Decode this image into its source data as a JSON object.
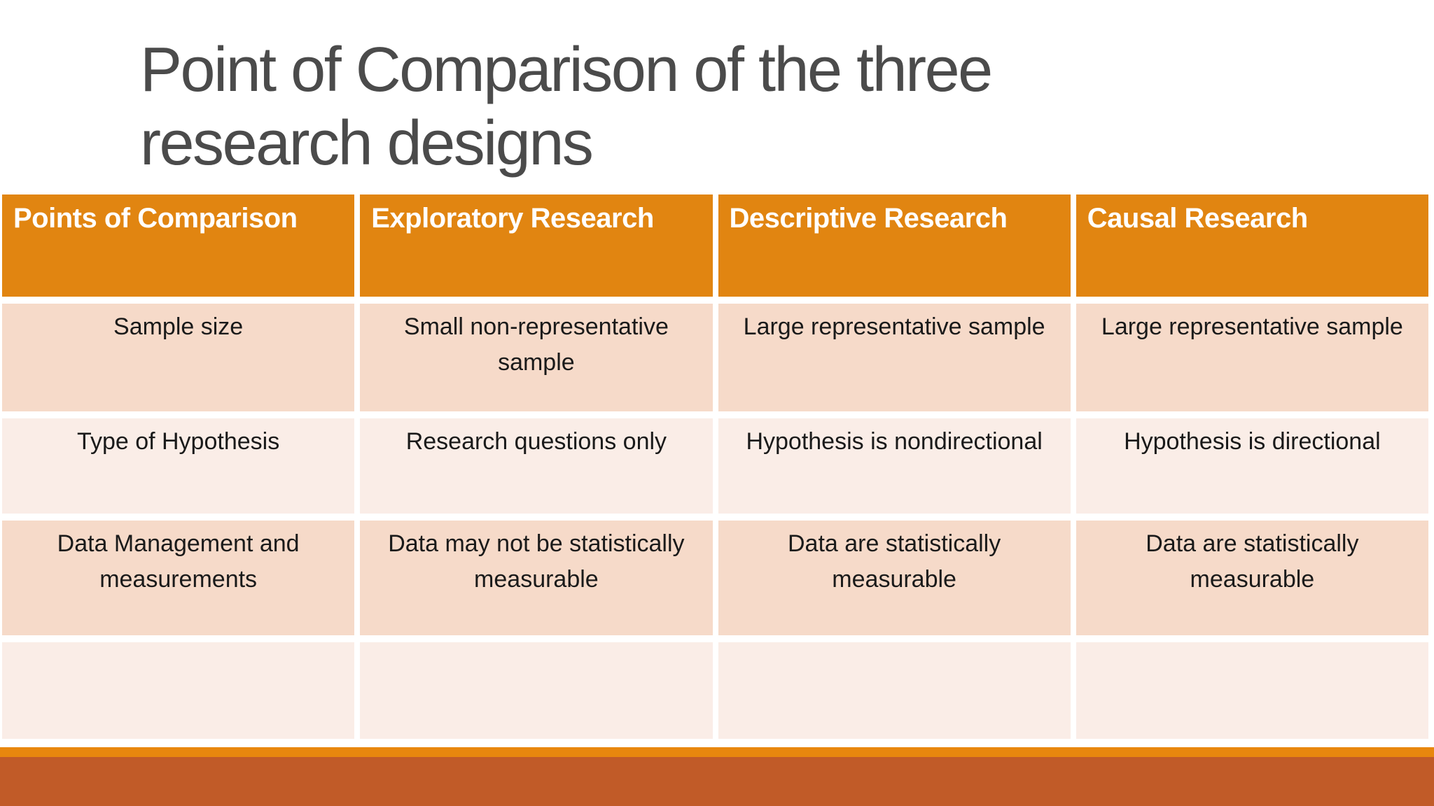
{
  "slide": {
    "title": {
      "line1": "Point of Comparison of the three",
      "line2": "research designs"
    },
    "table": {
      "headers": [
        "Points of Comparison",
        "Exploratory Research",
        "Descriptive Research",
        "Causal Research"
      ],
      "rows": [
        [
          "Sample size",
          "Small non-representative sample",
          "Large representative sample",
          "Large representative sample"
        ],
        [
          "Type of Hypothesis",
          "Research questions only",
          "Hypothesis is nondirectional",
          "Hypothesis is directional"
        ],
        [
          "Data Management and measurements",
          "Data may not be statistically measurable",
          "Data are statistically measurable",
          "Data are statistically measurable"
        ],
        [
          "",
          "",
          "",
          ""
        ]
      ]
    },
    "colors": {
      "header_orange": "#E18511",
      "row_peach": "#F6DAC9",
      "row_light": "#FAEDE7",
      "accent_strip_orange": "#E8870E",
      "footer_rust": "#C15B28",
      "title_gray": "#4B4B4B",
      "header_text": "#FFFFFF",
      "cell_text": "#1A1A1A"
    }
  }
}
